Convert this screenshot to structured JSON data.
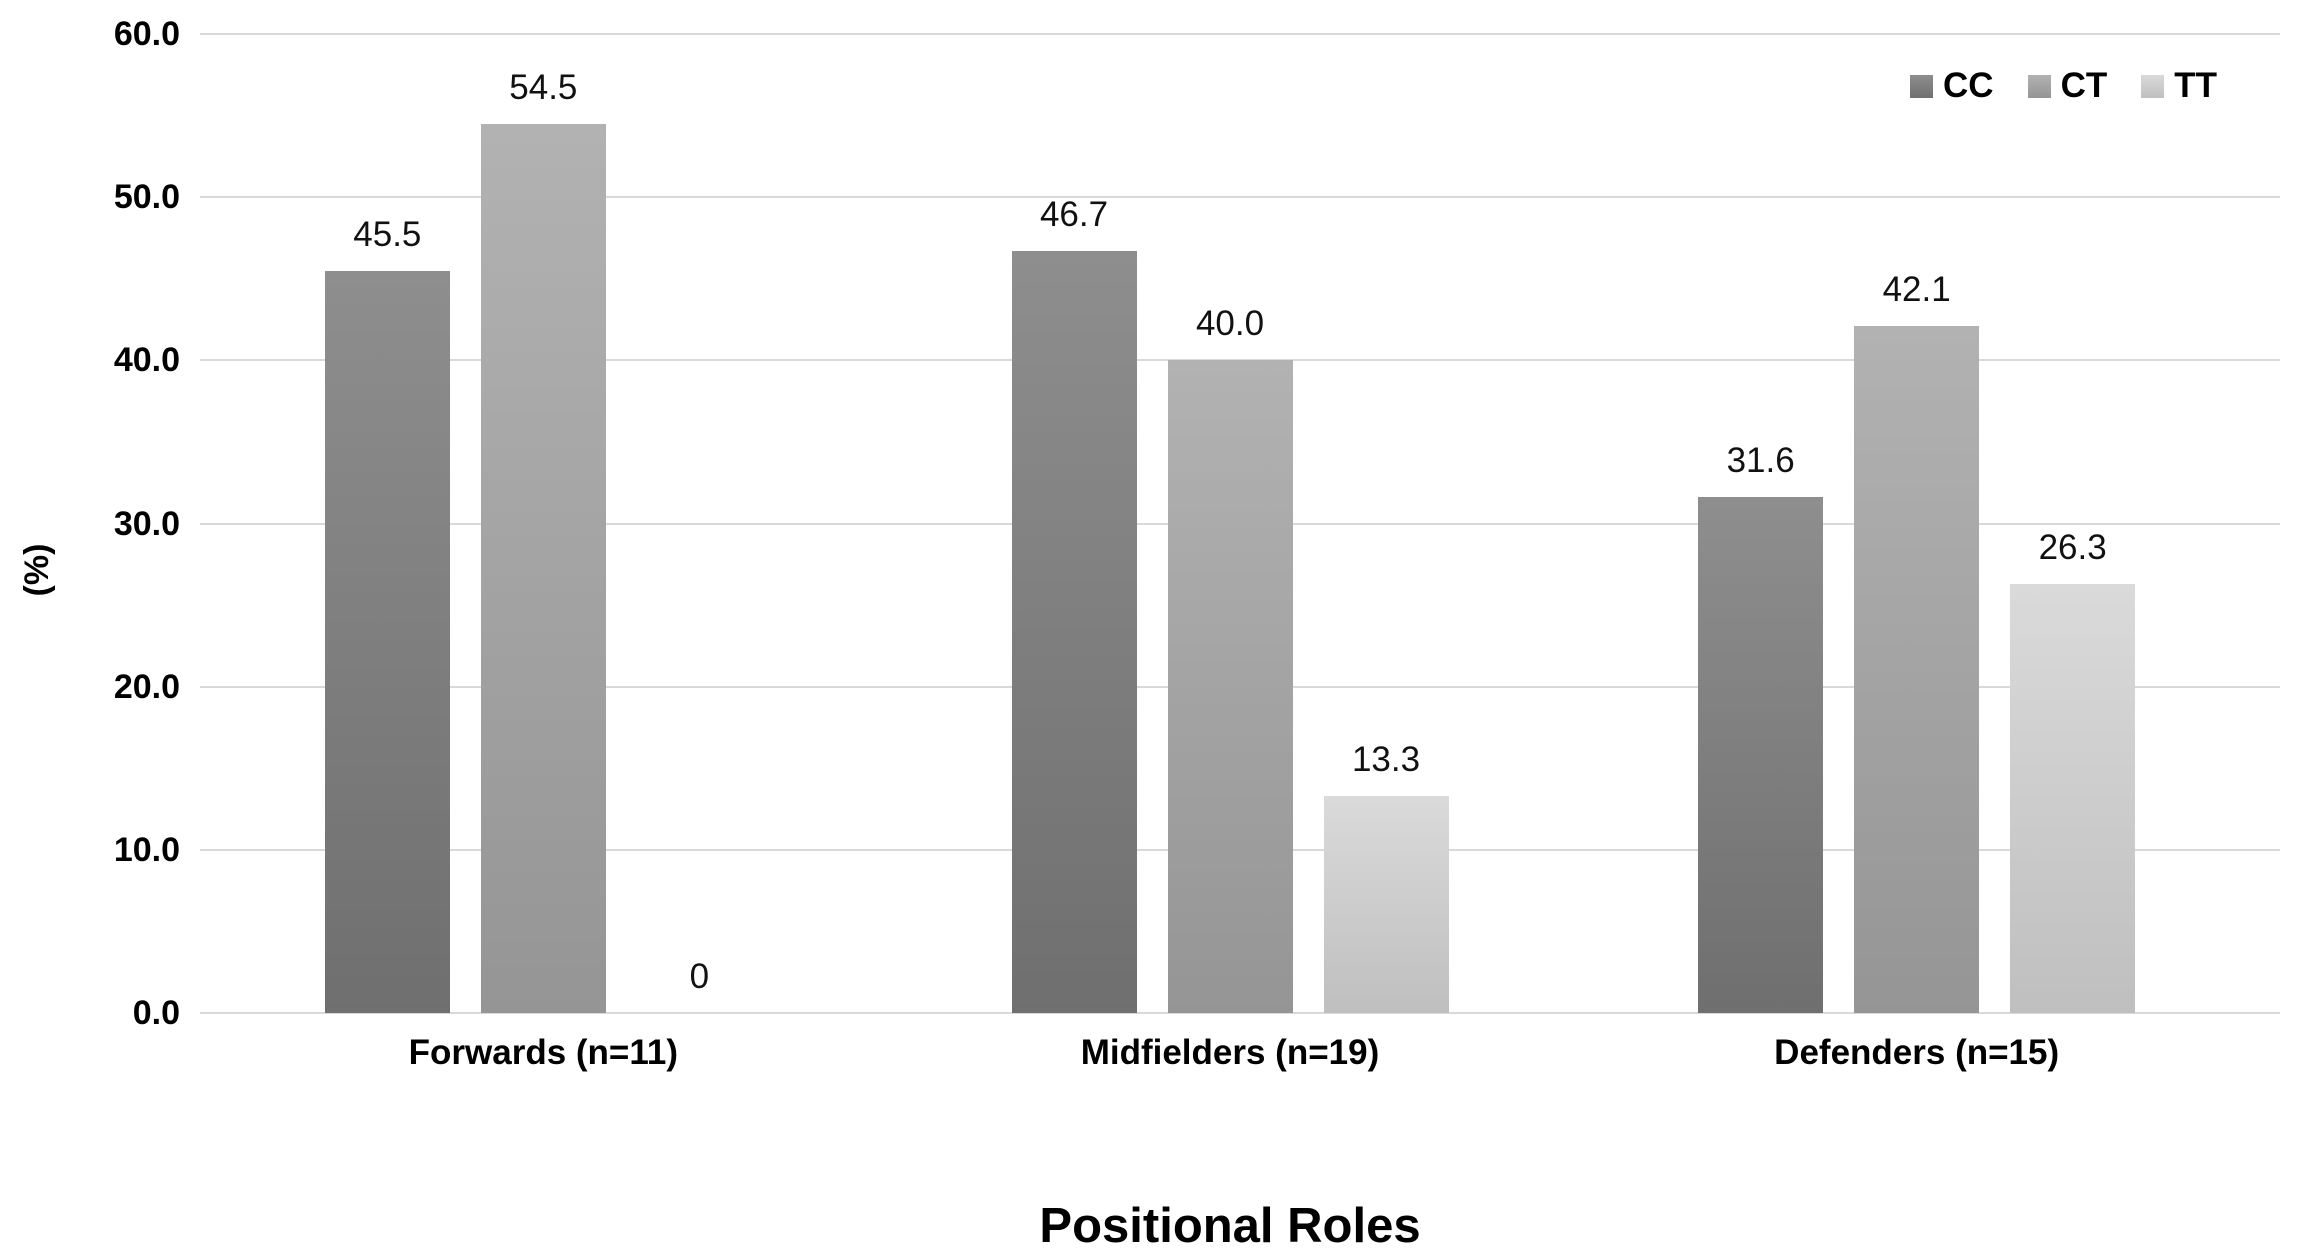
{
  "chart_data": {
    "type": "bar",
    "title": "",
    "categories": [
      "Forwards (n=11)",
      "Midfielders (n=19)",
      "Defenders (n=15)"
    ],
    "series": [
      {
        "name": "CC",
        "values": [
          45.5,
          46.7,
          31.6
        ],
        "value_labels": [
          "45.5",
          "46.7",
          "31.6"
        ],
        "color_top": "#8e8e8e",
        "color_bottom": "#6f6f6f"
      },
      {
        "name": "CT",
        "values": [
          54.5,
          40.0,
          42.1
        ],
        "value_labels": [
          "54.5",
          "40.0",
          "42.1"
        ],
        "color_top": "#b2b2b2",
        "color_bottom": "#959595"
      },
      {
        "name": "TT",
        "values": [
          0,
          13.3,
          26.3
        ],
        "value_labels": [
          "0",
          "13.3",
          "26.3"
        ],
        "color_top": "#dadada",
        "color_bottom": "#bfbfbf"
      }
    ],
    "xlabel": "Positional Roles",
    "ylabel": "(%)",
    "ylim": [
      0,
      60
    ],
    "ytick_step": 10,
    "ytick_labels": [
      "0.0",
      "10.0",
      "20.0",
      "30.0",
      "40.0",
      "50.0",
      "60.0"
    ],
    "grid": true,
    "gridline_color": "#d9d9d9",
    "axis_line_color": "#d9d9d9",
    "background_color": "#ffffff",
    "text_color": "#000000",
    "legend_position": "top-right",
    "legend_items": [
      "CC",
      "CT",
      "TT"
    ]
  }
}
